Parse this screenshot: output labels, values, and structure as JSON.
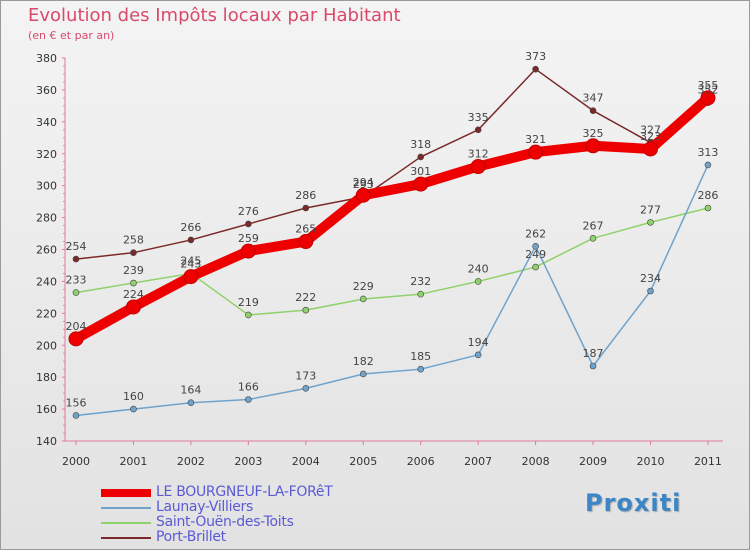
{
  "header": {
    "title": "Evolution des Impôts locaux par Habitant",
    "subtitle": "(en € et par an)"
  },
  "brand": {
    "text": "Proxiti",
    "color": "#3a86c8"
  },
  "chart_data": {
    "type": "line",
    "x": [
      "2000",
      "2001",
      "2002",
      "2003",
      "2004",
      "2005",
      "2006",
      "2007",
      "2008",
      "2009",
      "2010",
      "2011"
    ],
    "ylim": [
      140,
      380
    ],
    "yticks": [
      140,
      160,
      180,
      200,
      220,
      240,
      260,
      280,
      300,
      320,
      340,
      360,
      380
    ],
    "grid": false,
    "legend_position": "bottom-left",
    "series": [
      {
        "name": "Port-Brillet",
        "color": "#7a2a2a",
        "values": [
          254,
          258,
          266,
          276,
          286,
          293,
          318,
          335,
          373,
          347,
          327,
          352
        ]
      },
      {
        "name": "Saint-Ouën-des-Toits",
        "color": "#8fd16a",
        "values": [
          233,
          239,
          245,
          219,
          222,
          229,
          232,
          240,
          249,
          267,
          277,
          286
        ]
      },
      {
        "name": "Launay-Villiers",
        "color": "#6fa3cc",
        "values": [
          156,
          160,
          164,
          166,
          173,
          182,
          185,
          194,
          262,
          187,
          234,
          313
        ]
      },
      {
        "name": "LE BOURGNEUF-LA-FORêT",
        "color": "#ee0000",
        "values": [
          204,
          224,
          243,
          259,
          265,
          294,
          301,
          312,
          321,
          325,
          323,
          355
        ]
      }
    ],
    "legend": [
      "LE BOURGNEUF-LA-FORêT",
      "Launay-Villiers",
      "Saint-Ouën-des-Toits",
      "Port-Brillet"
    ]
  }
}
